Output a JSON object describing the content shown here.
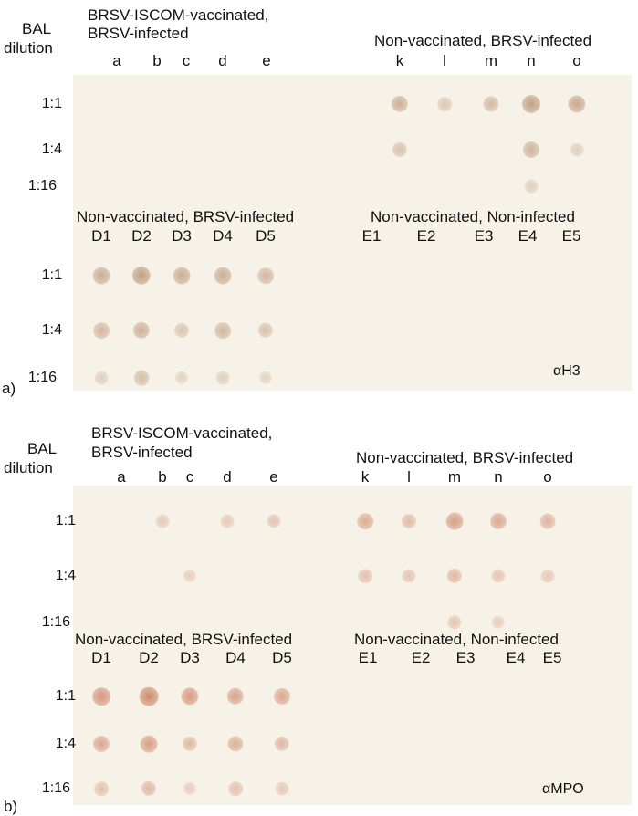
{
  "panels": [
    {
      "letter": "a)",
      "bal_label_line1": "BAL",
      "bal_label_line2": "dilution",
      "top_left_group_line1": "BRSV-ISCOM-vaccinated,",
      "top_left_group_line2": "BRSV-infected",
      "top_right_group": "Non-vaccinated, BRSV-infected",
      "top_left_cols": [
        "a",
        "b",
        "c",
        "d",
        "e"
      ],
      "top_right_cols": [
        "k",
        "l",
        "m",
        "n",
        "o"
      ],
      "top_rows": [
        "1:1",
        "1:4",
        "1:16"
      ],
      "bottom_left_group": "Non-vaccinated, BRSV-infected",
      "bottom_right_group": "Non-vaccinated, Non-infected",
      "bottom_left_cols": [
        "D1",
        "D2",
        "D3",
        "D4",
        "D5"
      ],
      "bottom_right_cols": [
        "E1",
        "E2",
        "E3",
        "E4",
        "E5"
      ],
      "bottom_rows": [
        "1:1",
        "1:4",
        "1:16"
      ],
      "antibody": "αH3",
      "spot_color": "#b0805e",
      "intensity_top_left": [
        [
          0,
          0,
          0,
          0,
          0
        ],
        [
          0,
          0,
          0,
          0,
          0
        ],
        [
          0,
          0,
          0,
          0,
          0
        ]
      ],
      "intensity_top_right": [
        [
          0.55,
          0.2,
          0.4,
          0.75,
          0.65
        ],
        [
          0.3,
          0,
          0,
          0.5,
          0.1
        ],
        [
          0,
          0,
          0,
          0.1,
          0
        ]
      ],
      "intensity_bottom_left": [
        [
          0.6,
          0.8,
          0.6,
          0.6,
          0.45
        ],
        [
          0.45,
          0.55,
          0.25,
          0.45,
          0.3
        ],
        [
          0.1,
          0.35,
          0.05,
          0.1,
          0.05
        ]
      ],
      "intensity_bottom_right": [
        [
          0,
          0,
          0,
          0,
          0
        ],
        [
          0,
          0,
          0,
          0,
          0
        ],
        [
          0,
          0,
          0,
          0,
          0
        ]
      ]
    },
    {
      "letter": "b)",
      "bal_label_line1": "BAL",
      "bal_label_line2": "dilution",
      "top_left_group_line1": "BRSV-ISCOM-vaccinated,",
      "top_left_group_line2": "BRSV-infected",
      "top_right_group": "Non-vaccinated, BRSV-infected",
      "top_left_cols": [
        "a",
        "b",
        "c",
        "d",
        "e"
      ],
      "top_right_cols": [
        "k",
        "l",
        "m",
        "n",
        "o"
      ],
      "top_rows": [
        "1:1",
        "1:4",
        "1:16"
      ],
      "bottom_left_group": "Non-vaccinated, BRSV-infected",
      "bottom_right_group": "Non-vaccinated, Non-infected",
      "bottom_left_cols": [
        "D1",
        "D2",
        "D3",
        "D4",
        "D5"
      ],
      "bottom_right_cols": [
        "E1",
        "E2",
        "E3",
        "E4",
        "E5"
      ],
      "bottom_rows": [
        "1:1",
        "1:4",
        "1:16"
      ],
      "antibody": "αMPO",
      "spot_color": "#c46a48",
      "intensity_top_left": [
        [
          0,
          0.1,
          0,
          0.1,
          0.15
        ],
        [
          0,
          0,
          0.05,
          0,
          0
        ],
        [
          0,
          0,
          0,
          0,
          0
        ]
      ],
      "intensity_top_right": [
        [
          0.45,
          0.25,
          0.6,
          0.5,
          0.35
        ],
        [
          0.2,
          0.15,
          0.3,
          0.15,
          0.1
        ],
        [
          0,
          0,
          0.15,
          0.05,
          0
        ]
      ],
      "intensity_bottom_left": [
        [
          0.7,
          0.85,
          0.65,
          0.55,
          0.5
        ],
        [
          0.5,
          0.6,
          0.3,
          0.4,
          0.3
        ],
        [
          0.2,
          0.3,
          0.05,
          0.2,
          0.1
        ]
      ],
      "intensity_bottom_right": [
        [
          0,
          0,
          0,
          0,
          0
        ],
        [
          0,
          0,
          0,
          0,
          0
        ],
        [
          0,
          0,
          0,
          0,
          0
        ]
      ]
    }
  ]
}
